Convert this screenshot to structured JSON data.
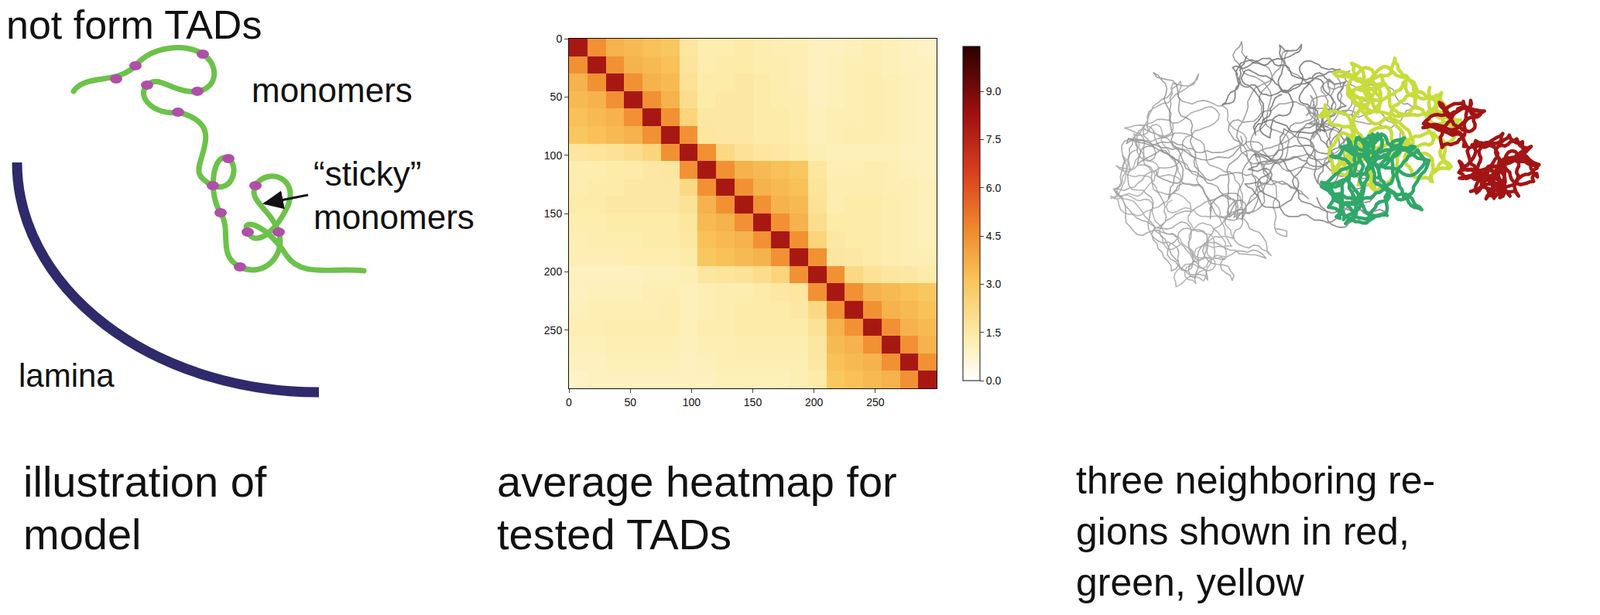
{
  "header": {
    "title": "not form TADs"
  },
  "illustration": {
    "monomers_label": "monomers",
    "sticky_label_lines": [
      "“sticky”",
      "monomers"
    ],
    "lamina_label": "lamina",
    "caption_lines": [
      "illustration of",
      "model"
    ]
  },
  "heatmap_panel": {
    "caption_lines": [
      "average heatmap for",
      "tested TADs"
    ]
  },
  "rendering": {
    "caption_lines": [
      "three neighboring re-",
      "gions shown in red,",
      "green, yellow"
    ]
  },
  "chart_data": {
    "type": "heatmap",
    "x": [
      7.5,
      22.5,
      37.5,
      52.5,
      67.5,
      82.5,
      97.5,
      112.5,
      127.5,
      142.5,
      157.5,
      172.5,
      187.5,
      202.5,
      217.5,
      232.5,
      247.5,
      262.5,
      277.5,
      292.5
    ],
    "y": [
      7.5,
      22.5,
      37.5,
      52.5,
      67.5,
      82.5,
      97.5,
      112.5,
      127.5,
      142.5,
      157.5,
      172.5,
      187.5,
      202.5,
      217.5,
      232.5,
      247.5,
      262.5,
      277.5,
      292.5
    ],
    "cells": [
      [
        8.0,
        4.5,
        3.6,
        3.4,
        3.2,
        3.0,
        1.6,
        1.3,
        1.3,
        1.4,
        1.3,
        1.2,
        1.2,
        1.0,
        1.0,
        1.1,
        1.2,
        1.1,
        1.0,
        0.9
      ],
      [
        4.5,
        8.0,
        4.5,
        3.6,
        3.4,
        3.2,
        1.7,
        1.3,
        1.4,
        1.4,
        1.3,
        1.3,
        1.2,
        1.0,
        1.1,
        1.2,
        1.2,
        1.1,
        1.0,
        1.0
      ],
      [
        3.6,
        4.5,
        8.0,
        4.5,
        3.6,
        3.4,
        1.8,
        1.4,
        1.4,
        1.5,
        1.4,
        1.3,
        1.2,
        1.0,
        1.1,
        1.2,
        1.3,
        1.2,
        1.1,
        1.0
      ],
      [
        3.4,
        3.6,
        4.5,
        8.0,
        4.5,
        3.6,
        2.0,
        1.4,
        1.5,
        1.5,
        1.4,
        1.3,
        1.3,
        1.0,
        1.1,
        1.2,
        1.3,
        1.2,
        1.1,
        1.0
      ],
      [
        3.2,
        3.4,
        3.6,
        4.5,
        8.0,
        4.5,
        2.4,
        1.5,
        1.5,
        1.5,
        1.4,
        1.4,
        1.3,
        1.1,
        1.2,
        1.2,
        1.3,
        1.2,
        1.1,
        1.0
      ],
      [
        3.0,
        3.2,
        3.4,
        3.6,
        4.5,
        8.0,
        4.5,
        1.6,
        1.5,
        1.5,
        1.4,
        1.4,
        1.3,
        1.1,
        1.2,
        1.3,
        1.3,
        1.2,
        1.1,
        1.0
      ],
      [
        1.6,
        1.7,
        1.8,
        2.0,
        2.4,
        4.5,
        8.0,
        4.5,
        2.2,
        1.8,
        1.6,
        1.5,
        1.4,
        1.2,
        1.1,
        1.1,
        1.1,
        1.1,
        1.0,
        1.0
      ],
      [
        1.3,
        1.3,
        1.4,
        1.4,
        1.5,
        1.6,
        4.5,
        8.0,
        4.5,
        3.6,
        3.4,
        3.2,
        3.0,
        1.6,
        1.2,
        1.2,
        1.3,
        1.2,
        1.1,
        1.0
      ],
      [
        1.3,
        1.4,
        1.4,
        1.5,
        1.5,
        1.5,
        2.2,
        4.5,
        8.0,
        4.5,
        3.6,
        3.4,
        3.2,
        1.7,
        1.3,
        1.3,
        1.3,
        1.2,
        1.2,
        1.1
      ],
      [
        1.4,
        1.4,
        1.5,
        1.5,
        1.5,
        1.5,
        1.8,
        3.6,
        4.5,
        8.0,
        4.5,
        3.6,
        3.4,
        1.8,
        1.3,
        1.4,
        1.4,
        1.3,
        1.2,
        1.1
      ],
      [
        1.3,
        1.3,
        1.4,
        1.4,
        1.4,
        1.4,
        1.6,
        3.4,
        3.6,
        4.5,
        8.0,
        4.5,
        3.6,
        2.0,
        1.4,
        1.4,
        1.4,
        1.3,
        1.2,
        1.1
      ],
      [
        1.2,
        1.3,
        1.3,
        1.3,
        1.4,
        1.4,
        1.5,
        3.2,
        3.4,
        3.6,
        4.5,
        8.0,
        4.5,
        2.4,
        1.5,
        1.4,
        1.4,
        1.3,
        1.2,
        1.1
      ],
      [
        1.2,
        1.2,
        1.2,
        1.3,
        1.3,
        1.3,
        1.4,
        3.0,
        3.2,
        3.4,
        3.6,
        4.5,
        8.0,
        4.5,
        1.6,
        1.5,
        1.4,
        1.3,
        1.2,
        1.2
      ],
      [
        1.0,
        1.0,
        1.0,
        1.0,
        1.1,
        1.1,
        1.2,
        1.6,
        1.7,
        1.8,
        2.0,
        2.4,
        4.5,
        8.0,
        4.5,
        2.2,
        1.8,
        1.6,
        1.5,
        1.4
      ],
      [
        1.0,
        1.1,
        1.1,
        1.1,
        1.2,
        1.2,
        1.1,
        1.2,
        1.3,
        1.3,
        1.4,
        1.5,
        1.6,
        4.5,
        8.0,
        4.5,
        3.6,
        3.4,
        3.2,
        3.0
      ],
      [
        1.1,
        1.2,
        1.2,
        1.2,
        1.2,
        1.3,
        1.1,
        1.2,
        1.3,
        1.4,
        1.4,
        1.4,
        1.5,
        2.2,
        4.5,
        8.0,
        4.5,
        3.6,
        3.4,
        3.2
      ],
      [
        1.2,
        1.2,
        1.3,
        1.3,
        1.3,
        1.3,
        1.1,
        1.3,
        1.3,
        1.4,
        1.4,
        1.4,
        1.4,
        1.8,
        3.6,
        4.5,
        8.0,
        4.5,
        3.6,
        3.4
      ],
      [
        1.1,
        1.1,
        1.2,
        1.2,
        1.2,
        1.2,
        1.1,
        1.2,
        1.2,
        1.3,
        1.3,
        1.3,
        1.3,
        1.6,
        3.4,
        3.6,
        4.5,
        8.0,
        4.5,
        3.6
      ],
      [
        1.0,
        1.0,
        1.1,
        1.1,
        1.1,
        1.1,
        1.0,
        1.1,
        1.2,
        1.2,
        1.2,
        1.2,
        1.2,
        1.5,
        3.2,
        3.4,
        3.6,
        4.5,
        8.0,
        4.5
      ],
      [
        0.9,
        1.0,
        1.0,
        1.0,
        1.0,
        1.0,
        1.0,
        1.0,
        1.1,
        1.1,
        1.1,
        1.1,
        1.2,
        1.4,
        3.0,
        3.2,
        3.4,
        3.6,
        4.5,
        8.0
      ]
    ],
    "xlim": [
      0,
      300
    ],
    "ylim": [
      300,
      0
    ],
    "xticks": [
      0,
      50,
      100,
      150,
      200,
      250
    ],
    "yticks": [
      0,
      50,
      100,
      150,
      200,
      250
    ],
    "colorbar_range": [
      0,
      10.4
    ],
    "colorbar_ticks": [
      {
        "value": 0,
        "label": "0.0"
      },
      1.5,
      {
        "value": 3,
        "label": "3.0"
      },
      4.5,
      {
        "value": 6,
        "label": "6.0"
      },
      7.5,
      {
        "value": 9,
        "label": "9.0"
      }
    ]
  }
}
